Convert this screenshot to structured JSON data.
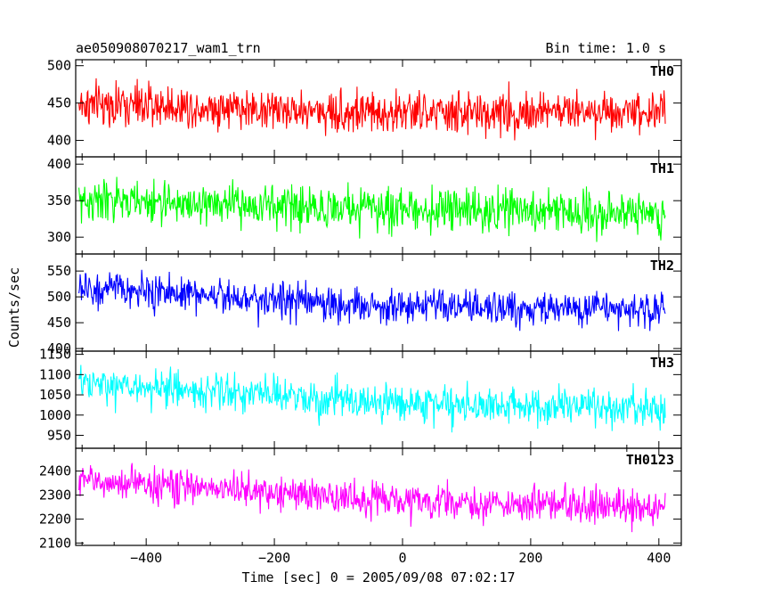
{
  "header": {
    "title": "ae050908070217_wam1_trn",
    "bin_time": "Bin time: 1.0 s"
  },
  "chart_data": {
    "type": "line",
    "title": "ae050908070217_wam1_trn",
    "subtitle": "Bin time: 1.0 s",
    "xlabel": "Time [sec] 0 = 2005/09/08 07:02:17",
    "ylabel": "Counts/sec",
    "xlim": [
      -510,
      435
    ],
    "x_range_data": [
      -505,
      410
    ],
    "x_ticks": [
      -400,
      -200,
      0,
      200,
      400
    ],
    "x_tick_labels": [
      "−400",
      "−200",
      "0",
      "200",
      "400"
    ],
    "panels": [
      {
        "name": "TH0",
        "color": "#ff0000",
        "ylim": [
          378,
          508
        ],
        "y_ticks": [
          400,
          450,
          500
        ],
        "trend": [
          [
            -505,
            448
          ],
          [
            -300,
            445
          ],
          [
            -100,
            438
          ],
          [
            100,
            436
          ],
          [
            300,
            440
          ],
          [
            410,
            440
          ]
        ],
        "noise": 20
      },
      {
        "name": "TH1",
        "color": "#00ff00",
        "ylim": [
          277,
          410
        ],
        "y_ticks": [
          300,
          350,
          400
        ],
        "trend": [
          [
            -505,
            350
          ],
          [
            -300,
            345
          ],
          [
            -100,
            340
          ],
          [
            100,
            337
          ],
          [
            300,
            335
          ],
          [
            410,
            332
          ]
        ],
        "noise": 20
      },
      {
        "name": "TH2",
        "color": "#0000ff",
        "ylim": [
          395,
          583
        ],
        "y_ticks": [
          400,
          450,
          500,
          550
        ],
        "trend": [
          [
            -505,
            515
          ],
          [
            -300,
            505
          ],
          [
            -100,
            485
          ],
          [
            100,
            478
          ],
          [
            300,
            477
          ],
          [
            410,
            475
          ]
        ],
        "noise": 24
      },
      {
        "name": "TH3",
        "color": "#00ffff",
        "ylim": [
          918,
          1158
        ],
        "y_ticks": [
          950,
          1000,
          1050,
          1100,
          1150
        ],
        "trend": [
          [
            -505,
            1075
          ],
          [
            -300,
            1060
          ],
          [
            -100,
            1035
          ],
          [
            100,
            1025
          ],
          [
            300,
            1020
          ],
          [
            410,
            1010
          ]
        ],
        "noise": 32
      },
      {
        "name": "TH0123",
        "color": "#ff00ff",
        "ylim": [
          2090,
          2495
        ],
        "y_ticks": [
          2100,
          2200,
          2300,
          2400
        ],
        "trend": [
          [
            -505,
            2360
          ],
          [
            -300,
            2330
          ],
          [
            -100,
            2290
          ],
          [
            100,
            2265
          ],
          [
            300,
            2255
          ],
          [
            410,
            2245
          ]
        ],
        "noise": 50
      }
    ]
  }
}
